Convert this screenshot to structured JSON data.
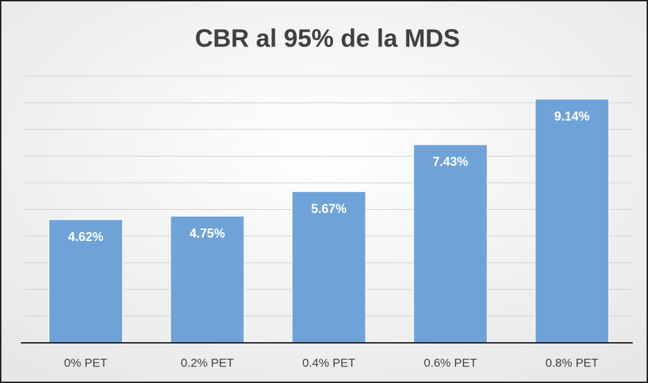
{
  "chart_data": {
    "type": "bar",
    "title": "CBR al 95% de la MDS",
    "categories": [
      "0% PET",
      "0.2% PET",
      "0.4% PET",
      "0.6% PET",
      "0.8% PET"
    ],
    "values": [
      4.62,
      4.75,
      5.67,
      7.43,
      9.14
    ],
    "value_labels": [
      "4.62%",
      "4.75%",
      "5.67%",
      "7.43%",
      "9.14%"
    ],
    "color": "#6fa3d8",
    "ylim": [
      0,
      10
    ],
    "yticks": [
      0,
      1,
      2,
      3,
      4,
      5,
      6,
      7,
      8,
      9,
      10
    ],
    "grid": true
  }
}
